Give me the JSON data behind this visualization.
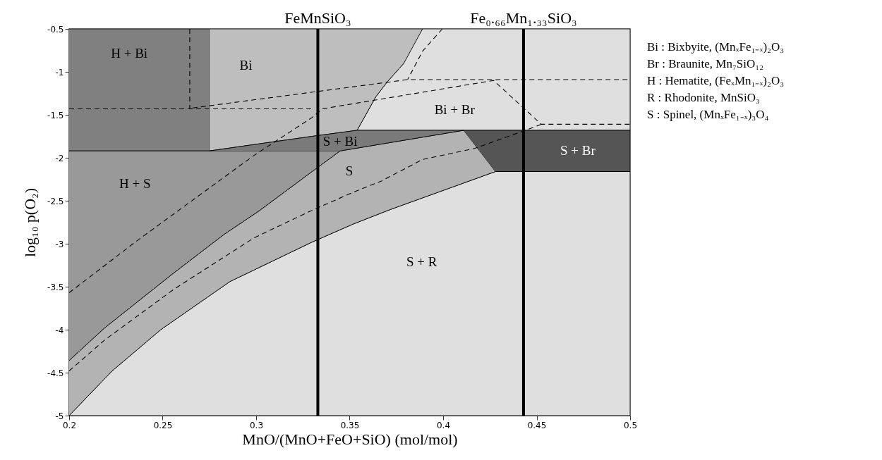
{
  "chart_data": {
    "type": "area",
    "xlabel": "MnO/(MnO+FeO+SiO) (mol/mol)",
    "ylabel": "log₁₀ p(O₂)",
    "xlim": [
      0.2,
      0.5
    ],
    "ylim": [
      -5,
      -0.5
    ],
    "xticks": [
      0.2,
      0.25,
      0.3,
      0.35,
      0.4,
      0.45,
      0.5
    ],
    "yticks": [
      -0.5,
      -1,
      -1.5,
      -2,
      -2.5,
      -3,
      -3.5,
      -4,
      -4.5,
      -5
    ],
    "grid": false,
    "series": [
      {
        "name": "S + R",
        "color": "#dfdfdf",
        "x": [
          0.2,
          0.223,
          0.249,
          0.286,
          0.33,
          0.352,
          0.372,
          0.428,
          0.5,
          0.5,
          0.2
        ],
        "values": [
          -5,
          -4.48,
          -4.0,
          -3.44,
          -2.98,
          -2.77,
          -2.6,
          -2.16,
          -2.16,
          -5,
          -5
        ]
      },
      {
        "name": "Bi + Br",
        "color": "#dfdfdf",
        "x": [
          0.389,
          0.5,
          0.5,
          0.354,
          0.364,
          0.37,
          0.379
        ],
        "values": [
          -0.5,
          -0.5,
          -1.68,
          -1.68,
          -1.29,
          -1.12,
          -0.9
        ]
      },
      {
        "name": "H + Bi",
        "color": "#808080",
        "x": [
          0.2,
          0.275,
          0.275,
          0.2
        ],
        "values": [
          -0.5,
          -0.5,
          -1.92,
          -1.92
        ]
      },
      {
        "name": "Bi",
        "color": "#bebebe",
        "x": [
          0.275,
          0.389,
          0.379,
          0.37,
          0.364,
          0.354,
          0.33,
          0.275
        ],
        "values": [
          -0.5,
          -0.5,
          -0.9,
          -1.12,
          -1.29,
          -1.68,
          -1.75,
          -1.92
        ]
      },
      {
        "name": "H + S",
        "color": "#999999",
        "x": [
          0.2,
          0.345,
          0.33,
          0.3015,
          0.283,
          0.256,
          0.219,
          0.2
        ],
        "values": [
          -1.92,
          -1.92,
          -2.16,
          -2.62,
          -2.89,
          -3.34,
          -3.98,
          -4.36
        ]
      },
      {
        "name": "S",
        "color": "#b3b3b3",
        "x": [
          0.2,
          0.219,
          0.256,
          0.283,
          0.3015,
          0.33,
          0.345,
          0.411,
          0.428,
          0.372,
          0.352,
          0.33,
          0.286,
          0.249,
          0.223,
          0.2
        ],
        "values": [
          -4.36,
          -3.98,
          -3.34,
          -2.89,
          -2.62,
          -2.16,
          -1.92,
          -1.68,
          -2.16,
          -2.6,
          -2.77,
          -2.98,
          -3.44,
          -4.0,
          -4.48,
          -5
        ]
      },
      {
        "name": "S + Bi",
        "color": "#7a7a7a",
        "x": [
          0.275,
          0.33,
          0.354,
          0.411,
          0.345
        ],
        "values": [
          -1.92,
          -1.75,
          -1.68,
          -1.68,
          -1.92
        ]
      },
      {
        "name": "S + Br",
        "color": "#555555",
        "x": [
          0.411,
          0.5,
          0.5,
          0.428
        ],
        "values": [
          -1.68,
          -1.68,
          -2.16,
          -2.16
        ]
      },
      {
        "type": "line",
        "color": "#000000",
        "line_style": "dashed",
        "x": [
          0.2645,
          0.2645
        ],
        "values": [
          -0.5,
          -1.43
        ]
      },
      {
        "type": "line",
        "color": "#000000",
        "line_style": "dashed",
        "x": [
          0.2,
          0.33
        ],
        "values": [
          -1.43,
          -1.43
        ]
      },
      {
        "type": "line",
        "color": "#000000",
        "line_style": "dashed",
        "x": [
          0.266,
          0.381,
          0.5
        ],
        "values": [
          -1.42,
          -1.09,
          -1.09
        ]
      },
      {
        "type": "line",
        "color": "#000000",
        "line_style": "dashed",
        "x": [
          0.3996,
          0.389,
          0.381
        ],
        "values": [
          -0.5,
          -0.76,
          -1.09
        ]
      },
      {
        "type": "line",
        "color": "#000000",
        "line_style": "dashed",
        "x": [
          0.2,
          0.236,
          0.299,
          0.33,
          0.3355,
          0.427,
          0.4525,
          0.5
        ],
        "values": [
          -3.57,
          -2.97,
          -1.97,
          -1.53,
          -1.43,
          -1.1,
          -1.61,
          -1.61
        ]
      },
      {
        "type": "line",
        "color": "#000000",
        "line_style": "dashed",
        "x": [
          0.2,
          0.219,
          0.256,
          0.299,
          0.329,
          0.352,
          0.367,
          0.389,
          0.417,
          0.444,
          0.4525
        ],
        "values": [
          -4.48,
          -4.12,
          -3.53,
          -2.93,
          -2.62,
          -2.4,
          -2.27,
          -2.02,
          -1.89,
          -1.68,
          -1.61
        ]
      }
    ],
    "ref_lines": [
      {
        "axis": "x",
        "value": 0.333,
        "label": "FeMnSiO₃",
        "color": "#000000"
      },
      {
        "axis": "x",
        "value": 0.443,
        "label": "Fe₀.₆₆Mn₁.₃₃SiO₃",
        "color": "#000000"
      }
    ],
    "annotations": [
      "Bi : Bixbyite, (MnₓFe₁₋ₓ)₂O₃",
      "Br : Braunite, Mn₇SiO₁₂",
      "H : Hematite, (FeₓMn₁₋ₓ)₂O₃",
      "R : Rhodonite, MnSiO₃",
      "S : Spinel, (MnₓFe₁₋ₓ)₃O₄"
    ]
  }
}
